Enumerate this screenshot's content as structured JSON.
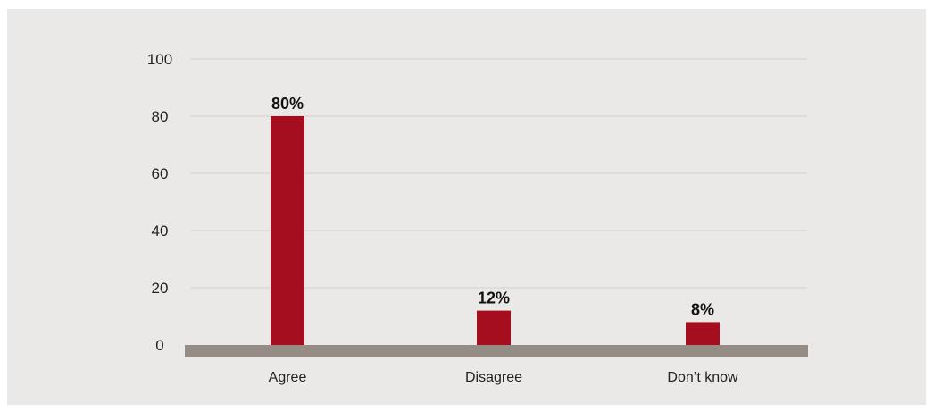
{
  "chart_data": {
    "type": "bar",
    "categories": [
      "Agree",
      "Disagree",
      "Don’t know"
    ],
    "values": [
      80,
      12,
      8
    ],
    "value_labels": [
      "80%",
      "12%",
      "8%"
    ],
    "ylim": [
      0,
      100
    ],
    "yticks": [
      0,
      20,
      40,
      60,
      80,
      100
    ],
    "grid": true,
    "colors": {
      "bar": "#a50e1f",
      "baseline": "#958c86",
      "grid": "#d3d0cd",
      "background": "#ebe9e7"
    }
  }
}
